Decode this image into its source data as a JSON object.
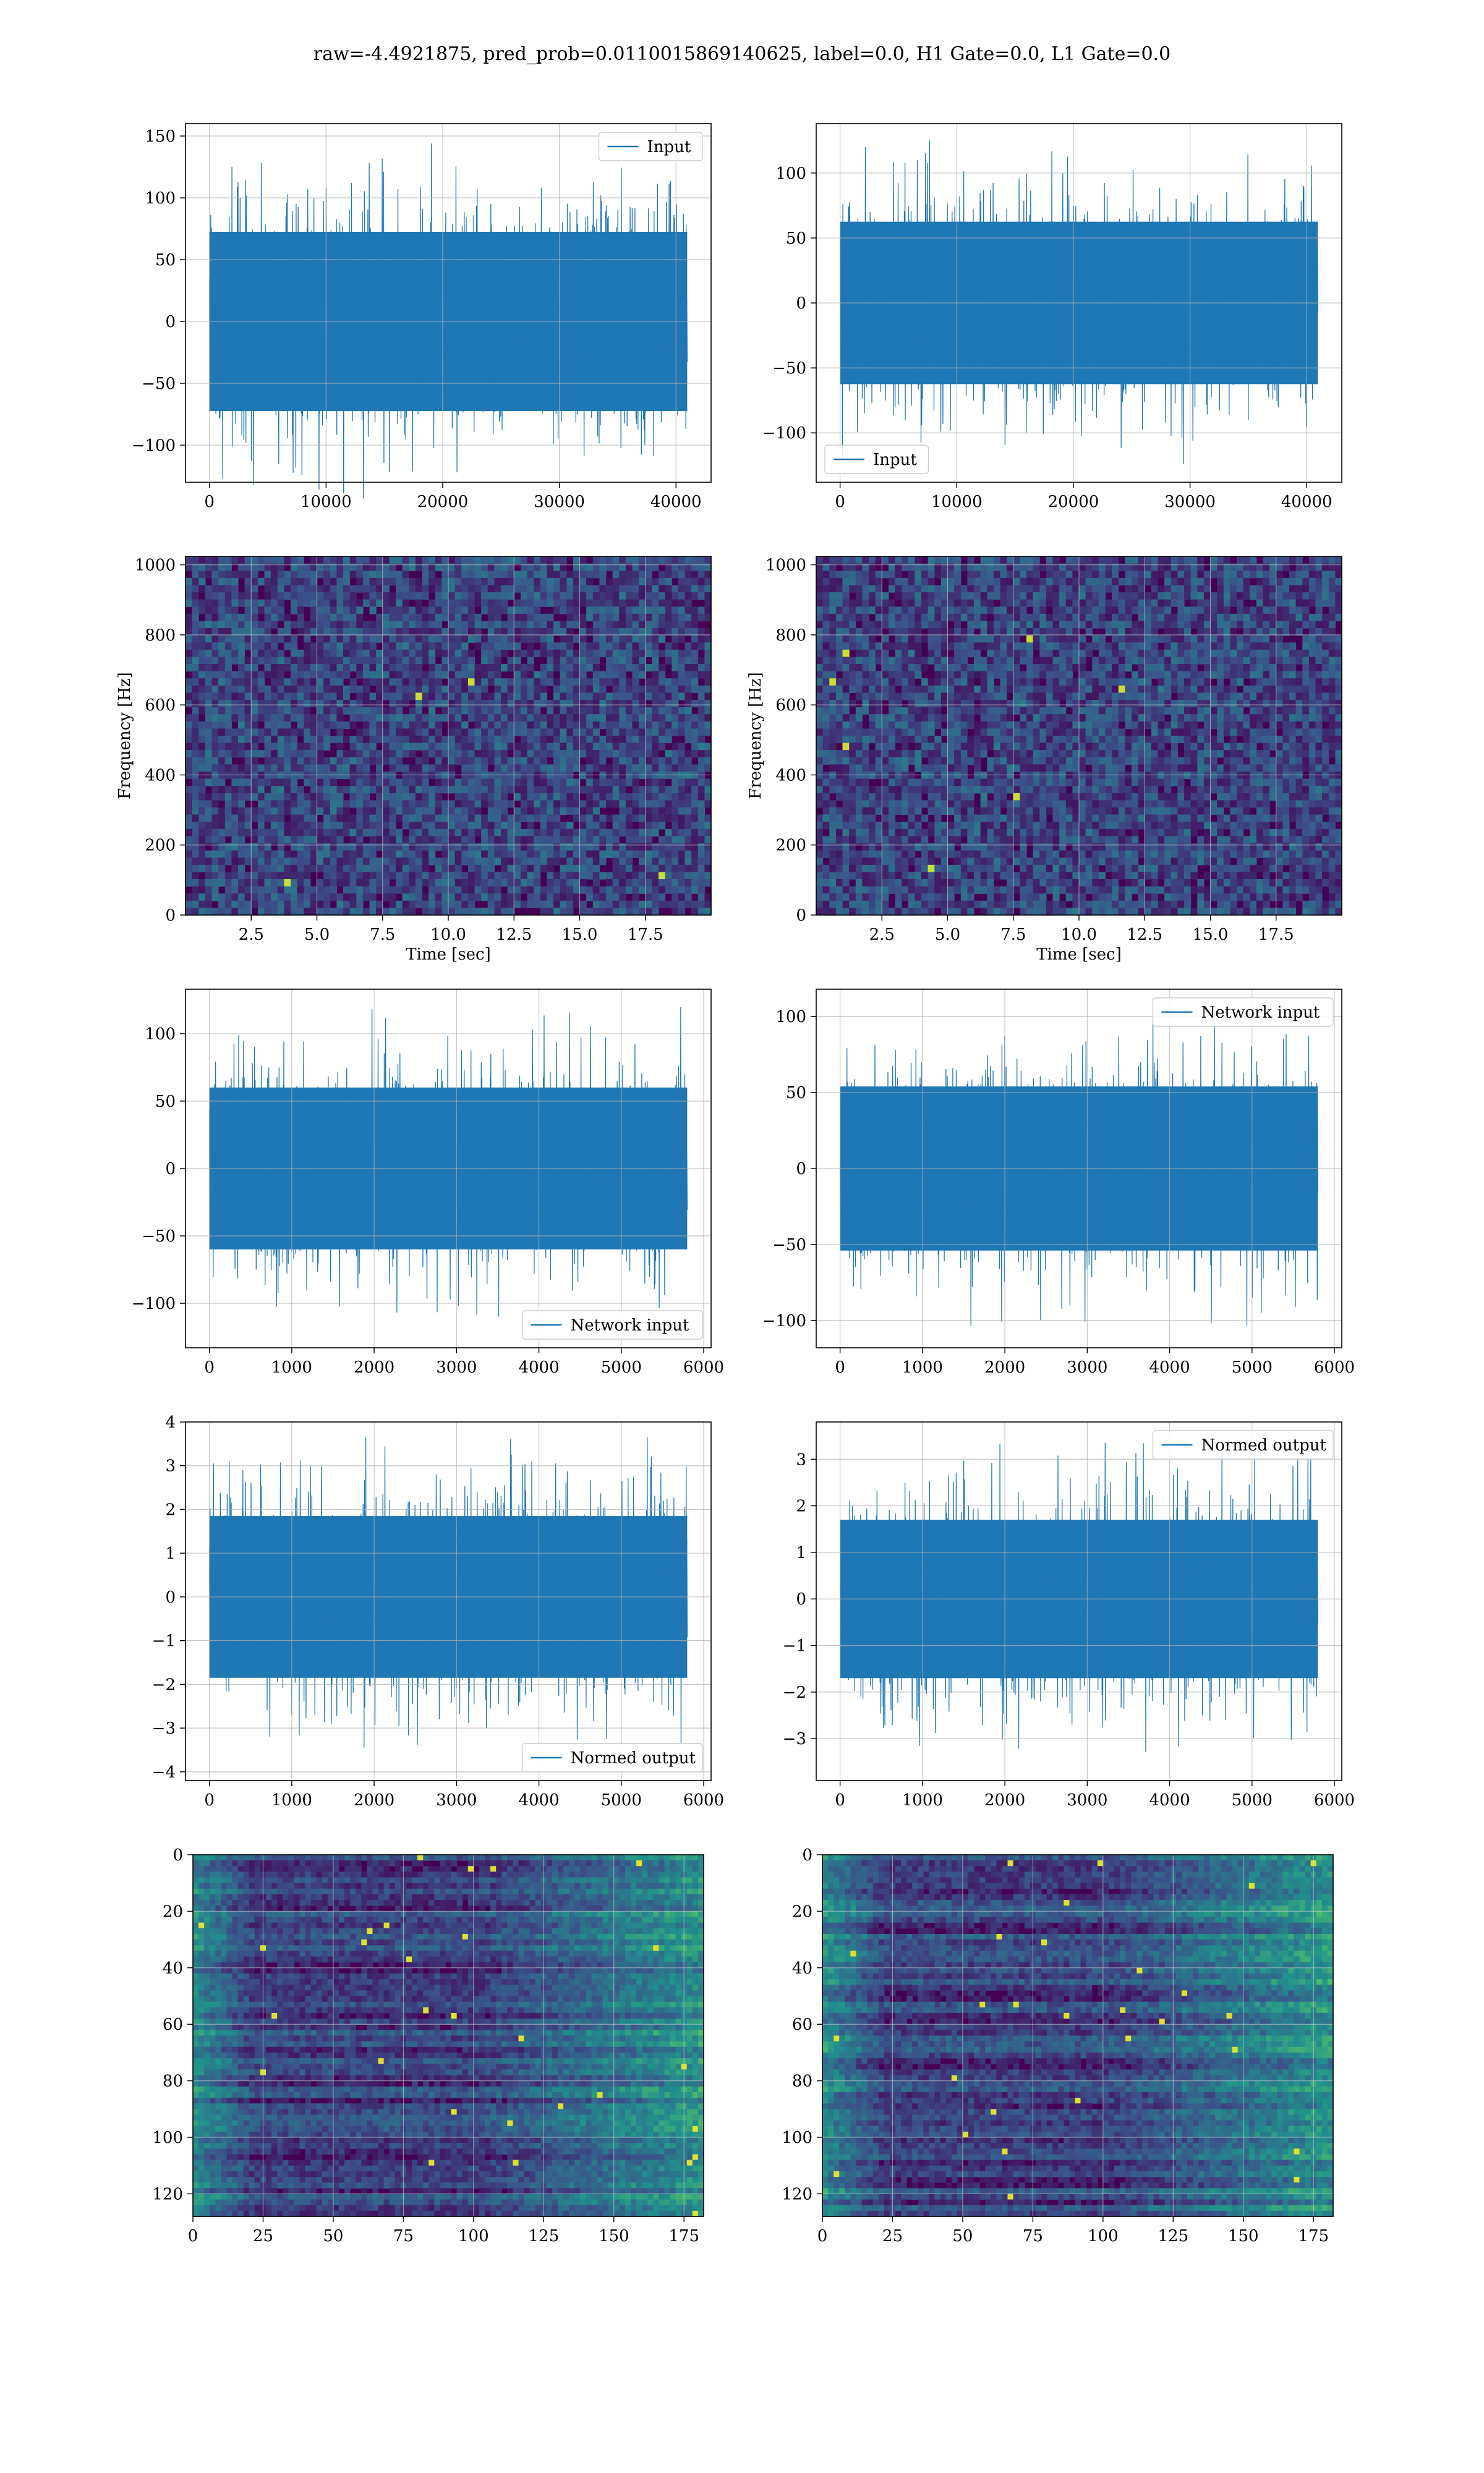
{
  "suptitle": "raw=-4.4921875, pred_prob=0.0110015869140625, label=0.0, H1 Gate=0.0, L1 Gate=0.0",
  "colors": {
    "line": "#1f77b4",
    "viridis_dark": "#440154",
    "grid": "#b0b0b0"
  },
  "chart_data": [
    {
      "id": "h1-input",
      "type": "line",
      "series": [
        {
          "name": "Input"
        }
      ],
      "x_range": [
        0,
        40960
      ],
      "y_amplitude": 145,
      "xlim": [
        -2048,
        43008
      ],
      "ylim": [
        -130,
        160
      ],
      "xticks": [
        0,
        10000,
        20000,
        30000,
        40000
      ],
      "xtick_labels": [
        "0",
        "10000",
        "20000",
        "30000",
        "40000"
      ],
      "yticks": [
        -100,
        -50,
        0,
        50,
        100,
        150
      ],
      "ytick_labels": [
        "−100",
        "−50",
        "0",
        "50",
        "100",
        "150"
      ],
      "legend_loc": "upper-right",
      "xlabel": "",
      "ylabel": "",
      "grid": true
    },
    {
      "id": "l1-input",
      "type": "line",
      "series": [
        {
          "name": "Input"
        }
      ],
      "x_range": [
        0,
        40960
      ],
      "y_amplitude": 125,
      "xlim": [
        -2048,
        43008
      ],
      "ylim": [
        -138,
        138
      ],
      "xticks": [
        0,
        10000,
        20000,
        30000,
        40000
      ],
      "xtick_labels": [
        "0",
        "10000",
        "20000",
        "30000",
        "40000"
      ],
      "yticks": [
        -100,
        -50,
        0,
        50,
        100
      ],
      "ytick_labels": [
        "−100",
        "−50",
        "0",
        "50",
        "100"
      ],
      "legend_loc": "lower-left",
      "xlabel": "",
      "ylabel": "",
      "grid": true
    },
    {
      "id": "h1-spectrogram",
      "type": "heatmap",
      "xlim": [
        0,
        20
      ],
      "ylim": [
        0,
        1024
      ],
      "xticks": [
        2.5,
        5.0,
        7.5,
        10.0,
        12.5,
        15.0,
        17.5
      ],
      "xtick_labels": [
        "2.5",
        "5.0",
        "7.5",
        "10.0",
        "12.5",
        "15.0",
        "17.5"
      ],
      "yticks": [
        0,
        200,
        400,
        600,
        800,
        1000
      ],
      "ytick_labels": [
        "0",
        "200",
        "400",
        "600",
        "800",
        "1000"
      ],
      "xlabel": "Time [sec]",
      "ylabel": "Frequency [Hz]",
      "grid": true,
      "colormap": "viridis"
    },
    {
      "id": "l1-spectrogram",
      "type": "heatmap",
      "xlim": [
        0,
        20
      ],
      "ylim": [
        0,
        1024
      ],
      "xticks": [
        2.5,
        5.0,
        7.5,
        10.0,
        12.5,
        15.0,
        17.5
      ],
      "xtick_labels": [
        "2.5",
        "5.0",
        "7.5",
        "10.0",
        "12.5",
        "15.0",
        "17.5"
      ],
      "yticks": [
        0,
        200,
        400,
        600,
        800,
        1000
      ],
      "ytick_labels": [
        "0",
        "200",
        "400",
        "600",
        "800",
        "1000"
      ],
      "xlabel": "Time [sec]",
      "ylabel": "Frequency [Hz]",
      "grid": true,
      "colormap": "viridis"
    },
    {
      "id": "h1-network-input",
      "type": "line",
      "series": [
        {
          "name": "Network input"
        }
      ],
      "x_range": [
        0,
        5800
      ],
      "y_amplitude": 120,
      "xlim": [
        -290,
        6090
      ],
      "ylim": [
        -133,
        133
      ],
      "xticks": [
        0,
        1000,
        2000,
        3000,
        4000,
        5000,
        6000
      ],
      "xtick_labels": [
        "0",
        "1000",
        "2000",
        "3000",
        "4000",
        "5000",
        "6000"
      ],
      "yticks": [
        -100,
        -50,
        0,
        50,
        100
      ],
      "ytick_labels": [
        "−100",
        "−50",
        "0",
        "50",
        "100"
      ],
      "legend_loc": "lower-right",
      "xlabel": "",
      "ylabel": "",
      "grid": true
    },
    {
      "id": "l1-network-input",
      "type": "line",
      "series": [
        {
          "name": "Network input"
        }
      ],
      "x_range": [
        0,
        5800
      ],
      "y_amplitude": 108,
      "xlim": [
        -290,
        6090
      ],
      "ylim": [
        -118,
        118
      ],
      "xticks": [
        0,
        1000,
        2000,
        3000,
        4000,
        5000,
        6000
      ],
      "xtick_labels": [
        "0",
        "1000",
        "2000",
        "3000",
        "4000",
        "5000",
        "6000"
      ],
      "yticks": [
        -100,
        -50,
        0,
        50,
        100
      ],
      "ytick_labels": [
        "−100",
        "−50",
        "0",
        "50",
        "100"
      ],
      "legend_loc": "upper-right",
      "xlabel": "",
      "ylabel": "",
      "grid": true
    },
    {
      "id": "h1-normed-output",
      "type": "line",
      "series": [
        {
          "name": "Normed output"
        }
      ],
      "x_range": [
        0,
        5800
      ],
      "y_amplitude": 3.7,
      "xlim": [
        -290,
        6090
      ],
      "ylim": [
        -4.2,
        4.0
      ],
      "xticks": [
        0,
        1000,
        2000,
        3000,
        4000,
        5000,
        6000
      ],
      "xtick_labels": [
        "0",
        "1000",
        "2000",
        "3000",
        "4000",
        "5000",
        "6000"
      ],
      "yticks": [
        -4,
        -3,
        -2,
        -1,
        0,
        1,
        2,
        3,
        4
      ],
      "ytick_labels": [
        "−4",
        "−3",
        "−2",
        "−1",
        "0",
        "1",
        "2",
        "3",
        "4"
      ],
      "legend_loc": "lower-right",
      "xlabel": "",
      "ylabel": "",
      "grid": true
    },
    {
      "id": "l1-normed-output",
      "type": "line",
      "series": [
        {
          "name": "Normed output"
        }
      ],
      "x_range": [
        0,
        5800
      ],
      "y_amplitude": 3.4,
      "xlim": [
        -290,
        6090
      ],
      "ylim": [
        -3.9,
        3.8
      ],
      "xticks": [
        0,
        1000,
        2000,
        3000,
        4000,
        5000,
        6000
      ],
      "xtick_labels": [
        "0",
        "1000",
        "2000",
        "3000",
        "4000",
        "5000",
        "6000"
      ],
      "yticks": [
        -3,
        -2,
        -1,
        0,
        1,
        2,
        3
      ],
      "ytick_labels": [
        "−3",
        "−2",
        "−1",
        "0",
        "1",
        "2",
        "3"
      ],
      "legend_loc": "upper-right",
      "xlabel": "",
      "ylabel": "",
      "grid": true
    },
    {
      "id": "h1-embedding",
      "type": "heatmap",
      "xlim": [
        0,
        182
      ],
      "ylim": [
        128,
        0
      ],
      "y_inverted": true,
      "xticks": [
        0,
        25,
        50,
        75,
        100,
        125,
        150,
        175
      ],
      "xtick_labels": [
        "0",
        "25",
        "50",
        "75",
        "100",
        "125",
        "150",
        "175"
      ],
      "yticks": [
        0,
        20,
        40,
        60,
        80,
        100,
        120
      ],
      "ytick_labels": [
        "0",
        "20",
        "40",
        "60",
        "80",
        "100",
        "120"
      ],
      "xlabel": "",
      "ylabel": "",
      "grid": true,
      "colormap": "viridis"
    },
    {
      "id": "l1-embedding",
      "type": "heatmap",
      "xlim": [
        0,
        182
      ],
      "ylim": [
        128,
        0
      ],
      "y_inverted": true,
      "xticks": [
        0,
        25,
        50,
        75,
        100,
        125,
        150,
        175
      ],
      "xtick_labels": [
        "0",
        "25",
        "50",
        "75",
        "100",
        "125",
        "150",
        "175"
      ],
      "yticks": [
        0,
        20,
        40,
        60,
        80,
        100,
        120
      ],
      "ytick_labels": [
        "0",
        "20",
        "40",
        "60",
        "80",
        "100",
        "120"
      ],
      "xlabel": "",
      "ylabel": "",
      "grid": true,
      "colormap": "viridis"
    }
  ]
}
